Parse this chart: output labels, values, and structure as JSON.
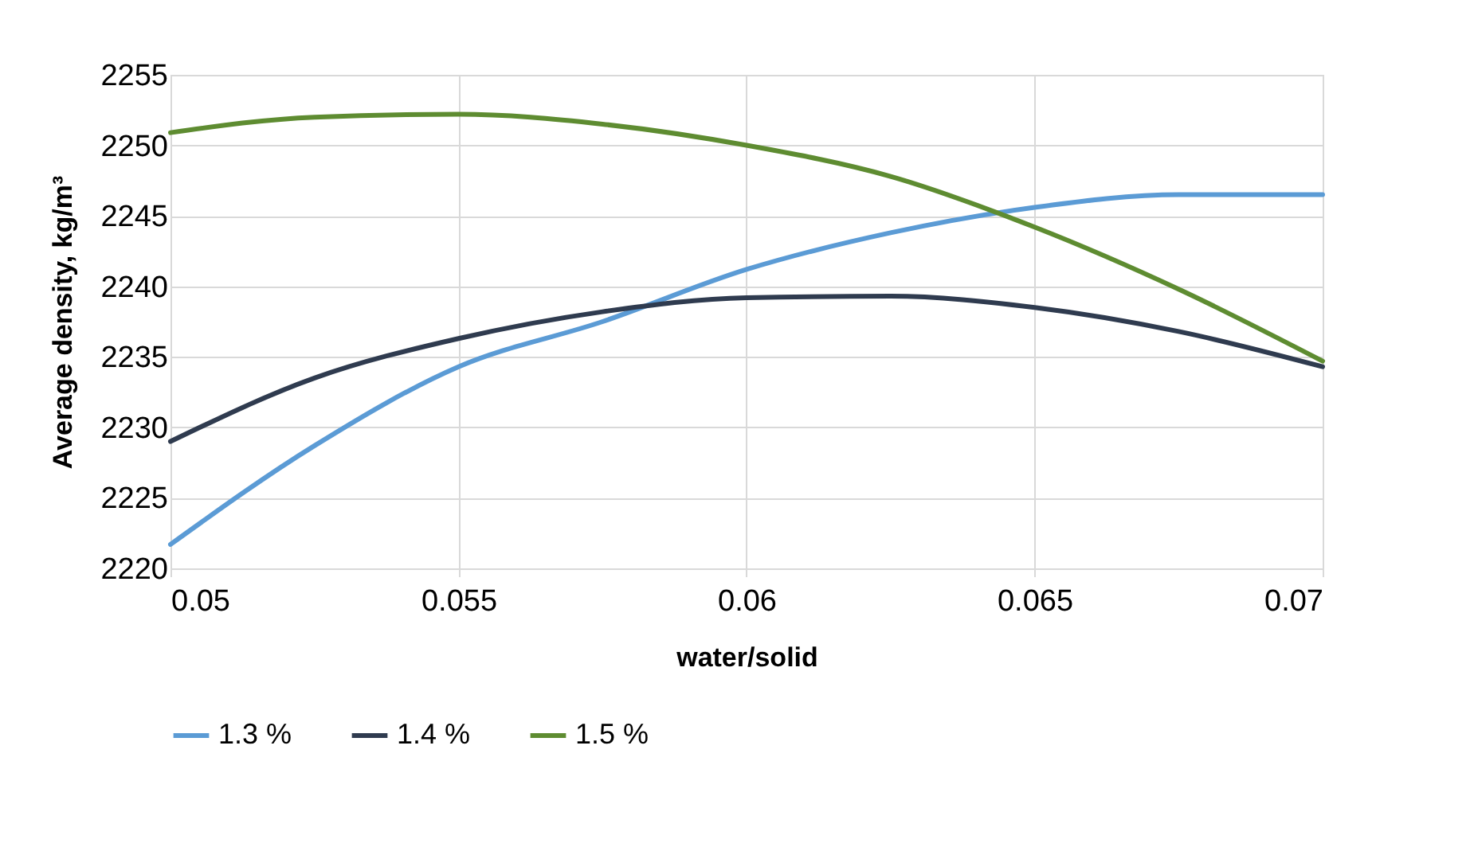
{
  "chart_data": {
    "type": "line",
    "xlabel": "water/solid",
    "ylabel": "Average density, kg/m³",
    "x": [
      0.05,
      0.0525,
      0.055,
      0.0575,
      0.06,
      0.0625,
      0.065,
      0.0675,
      0.07
    ],
    "series": [
      {
        "name": "1.3 %",
        "color": "#5b9bd5",
        "values": [
          2221.7,
          2228.7,
          2234.3,
          2237.5,
          2241.2,
          2243.8,
          2245.6,
          2246.5,
          2246.5
        ]
      },
      {
        "name": "1.4 %",
        "color": "#2f3b4f",
        "values": [
          2229,
          2233.5,
          2236.3,
          2238.2,
          2239.2,
          2239.3,
          2238.5,
          2236.8,
          2234.3
        ]
      },
      {
        "name": "1.5 %",
        "color": "#5e8c31",
        "values": [
          2250.9,
          2252,
          2252.2,
          2251.5,
          2250,
          2247.8,
          2244.2,
          2239.8,
          2234.7
        ]
      }
    ],
    "xlim": [
      0.05,
      0.07
    ],
    "xticks": [
      0.05,
      0.055,
      0.06,
      0.065,
      0.07
    ],
    "ylim": [
      2220,
      2255
    ],
    "yticks": [
      2220,
      2225,
      2230,
      2235,
      2240,
      2245,
      2250,
      2255
    ],
    "grid": true,
    "legend": "bottom",
    "marker": "none",
    "line_style": "solid"
  }
}
